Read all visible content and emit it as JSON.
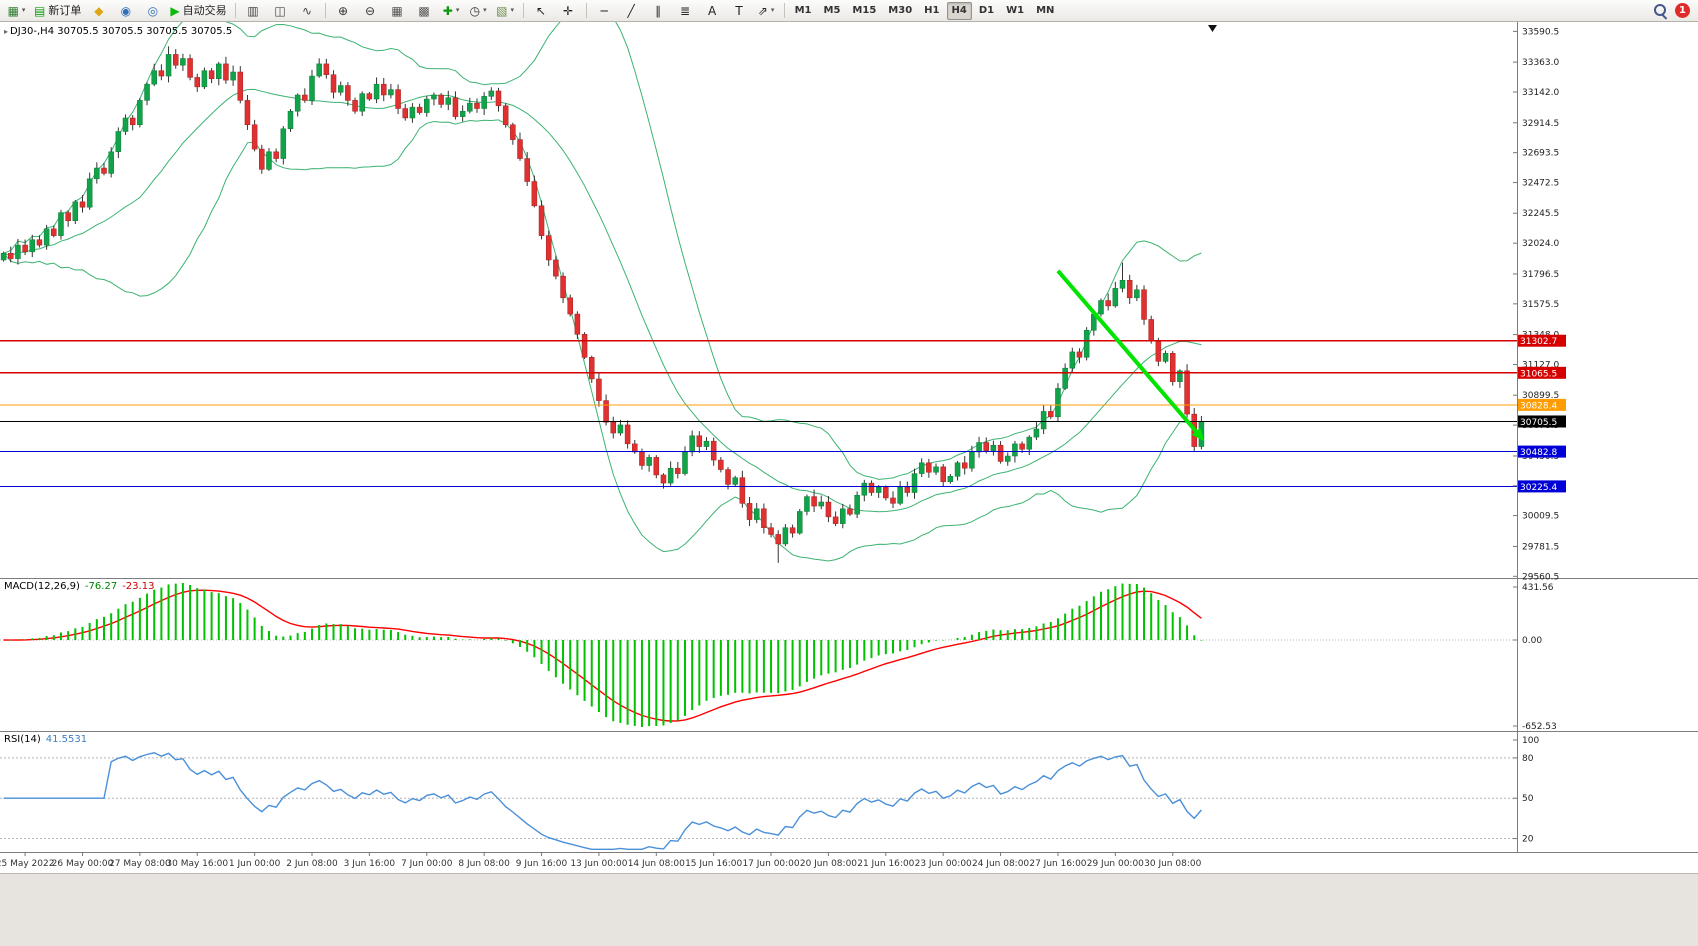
{
  "toolbar": {
    "caret_glyph": "▾",
    "items": [
      {
        "type": "icon",
        "name": "new-chart-icon",
        "glyph": "▦",
        "color": "#2e7d32",
        "caret": true
      },
      {
        "type": "labeled-button",
        "name": "new-order-button",
        "glyph": "▤",
        "glyph_color": "#12a012",
        "label": "新订单"
      },
      {
        "type": "icon",
        "name": "mql5-market-icon",
        "glyph": "◆",
        "color": "#dfa518"
      },
      {
        "type": "icon",
        "name": "signals-icon",
        "glyph": "◉",
        "color": "#2f6fb8"
      },
      {
        "type": "icon",
        "name": "virtual-hosting-icon",
        "glyph": "◎",
        "color": "#2f6fb8"
      },
      {
        "type": "labeled-button",
        "name": "algo-trading-button",
        "glyph": "▶",
        "glyph_color": "#0db80d",
        "label": "自动交易"
      },
      {
        "type": "sep"
      },
      {
        "type": "icon",
        "name": "bars-icon",
        "glyph": "▥",
        "color": "#444"
      },
      {
        "type": "icon",
        "name": "candlesticks-icon",
        "glyph": "◫",
        "color": "#444"
      },
      {
        "type": "icon",
        "name": "line-chart-icon",
        "glyph": "∿",
        "color": "#444"
      },
      {
        "type": "sep"
      },
      {
        "type": "icon",
        "name": "zoom-in-icon",
        "glyph": "⊕",
        "color": "#333"
      },
      {
        "type": "icon",
        "name": "zoom-out-icon",
        "glyph": "⊖",
        "color": "#333"
      },
      {
        "type": "icon",
        "name": "tile-windows-icon",
        "glyph": "▦",
        "color": "#555"
      },
      {
        "type": "icon",
        "name": "auto-arrange-icon",
        "glyph": "▩",
        "color": "#555"
      },
      {
        "type": "icon",
        "name": "indicators-icon",
        "glyph": "✚",
        "color": "#0a9a0a",
        "caret": true
      },
      {
        "type": "icon",
        "name": "periods-icon",
        "glyph": "◷",
        "color": "#333",
        "caret": true
      },
      {
        "type": "icon",
        "name": "templates-icon",
        "glyph": "▧",
        "color": "#6a8f4a",
        "caret": true
      },
      {
        "type": "sep"
      },
      {
        "type": "icon",
        "name": "cursor-icon",
        "glyph": "↖",
        "color": "#222"
      },
      {
        "type": "icon",
        "name": "crosshair-icon",
        "glyph": "✛",
        "color": "#222"
      },
      {
        "type": "sep"
      },
      {
        "type": "icon",
        "name": "horizontal-line-icon",
        "glyph": "─",
        "color": "#222"
      },
      {
        "type": "icon",
        "name": "trendline-icon",
        "glyph": "╱",
        "color": "#222"
      },
      {
        "type": "icon",
        "name": "channel-icon",
        "glyph": "∥",
        "color": "#222"
      },
      {
        "type": "icon",
        "name": "fibonacci-icon",
        "glyph": "≣",
        "color": "#222"
      },
      {
        "type": "icon",
        "name": "text-icon",
        "glyph": "A",
        "color": "#222"
      },
      {
        "type": "icon",
        "name": "label-icon",
        "glyph": "T",
        "color": "#222"
      },
      {
        "type": "icon",
        "name": "arrows-icon",
        "glyph": "⇗",
        "color": "#222",
        "caret": true
      },
      {
        "type": "sep"
      }
    ],
    "timeframes": {
      "items": [
        "M1",
        "M5",
        "M15",
        "M30",
        "H1",
        "H4",
        "D1",
        "W1",
        "MN"
      ],
      "active": "H4"
    },
    "right": {
      "search_name": "search-icon",
      "badge_name": "notifications-badge",
      "badge_label": "1"
    }
  },
  "chart_data": {
    "type": "candlestick",
    "symbol": "DJ30-",
    "period": "H4",
    "title_line": "DJ30-,H4 30705.5 30705.5 30705.5 30705.5",
    "ohlc_current": {
      "open": 30705.5,
      "high": 30705.5,
      "low": 30705.5,
      "close": 30705.5
    },
    "price_axis": {
      "visible_range": [
        29560.5,
        33590.5
      ],
      "ticks": [
        33590.5,
        33363.0,
        33142.0,
        32914.5,
        32693.5,
        32472.5,
        32245.5,
        32024.0,
        31796.5,
        31575.5,
        31348.0,
        31127.0,
        30899.5,
        30678.5,
        30450.5,
        30230.0,
        30009.5,
        29781.5,
        29560.5
      ]
    },
    "time_axis": {
      "labels": [
        "25 May 2022",
        "26 May 00:00",
        "27 May 08:00",
        "30 May 16:00",
        "1 Jun 00:00",
        "2 Jun 08:00",
        "3 Jun 16:00",
        "7 Jun 00:00",
        "8 Jun 08:00",
        "9 Jun 16:00",
        "13 Jun 00:00",
        "14 Jun 08:00",
        "15 Jun 16:00",
        "17 Jun 00:00",
        "20 Jun 08:00",
        "21 Jun 16:00",
        "23 Jun 00:00",
        "24 Jun 08:00",
        "27 Jun 16:00",
        "29 Jun 00:00",
        "30 Jun 08:00"
      ]
    },
    "candles": {
      "first_open": 31900,
      "closes": [
        31950,
        31910,
        32010,
        31960,
        32050,
        32010,
        32130,
        32080,
        32250,
        32190,
        32330,
        32290,
        32500,
        32580,
        32540,
        32700,
        32850,
        32950,
        32900,
        33080,
        33200,
        33300,
        33260,
        33420,
        33340,
        33390,
        33250,
        33180,
        33300,
        33240,
        33350,
        33230,
        33290,
        33080,
        32900,
        32720,
        32570,
        32700,
        32650,
        32870,
        33000,
        33120,
        33080,
        33260,
        33350,
        33270,
        33140,
        33190,
        33080,
        33000,
        33130,
        33090,
        33200,
        33120,
        33160,
        33020,
        32950,
        33030,
        32990,
        33090,
        33120,
        33050,
        33100,
        32960,
        33000,
        33060,
        33020,
        33110,
        33150,
        33040,
        32900,
        32790,
        32650,
        32480,
        32300,
        32080,
        31900,
        31780,
        31620,
        31500,
        31350,
        31180,
        31020,
        30860,
        30700,
        30620,
        30680,
        30540,
        30480,
        30380,
        30440,
        30310,
        30250,
        30360,
        30320,
        30480,
        30600,
        30520,
        30560,
        30420,
        30350,
        30240,
        30290,
        30100,
        29980,
        30060,
        29920,
        29870,
        29800,
        29920,
        29880,
        30040,
        30150,
        30080,
        30110,
        30000,
        29950,
        30060,
        30020,
        30160,
        30250,
        30180,
        30220,
        30140,
        30100,
        30220,
        30180,
        30320,
        30400,
        30330,
        30370,
        30260,
        30300,
        30400,
        30360,
        30480,
        30550,
        30490,
        30530,
        30410,
        30450,
        30540,
        30500,
        30590,
        30650,
        30780,
        30740,
        30950,
        31100,
        31220,
        31180,
        31380,
        31500,
        31600,
        31560,
        31690,
        31750,
        31620,
        31680,
        31460,
        31300,
        31150,
        31210,
        31000,
        31080,
        30760,
        30520,
        30705.5
      ],
      "wick_overrides": {
        "23": {
          "high": 33480
        },
        "108": {
          "low": 29660
        },
        "156": {
          "high": 31880
        }
      }
    },
    "indicators": {
      "bollinger": {
        "period": 20,
        "deviation": 2,
        "color": "#3CB371"
      },
      "macd": {
        "name": "MACD(12,26,9)",
        "fast": 12,
        "slow": 26,
        "signal": 9,
        "value_main": "-76.27",
        "value_signal": "-23.13",
        "axis_ticks": [
          "431.56",
          "0.00",
          "-652.53"
        ],
        "histogram_color": "#00c200",
        "signal_color": "#ff0000"
      },
      "rsi": {
        "name": "RSI(14)",
        "period": 14,
        "value": "41.5531",
        "levels": [
          80,
          50,
          20
        ],
        "axis_ticks": [
          "100",
          "80",
          "50",
          "20"
        ],
        "range": [
          10,
          100
        ],
        "color": "#4a90d9"
      }
    },
    "objects": {
      "hlines": [
        {
          "price": 31302.7,
          "color": "#d60000"
        },
        {
          "price": 31065.5,
          "color": "#d60000"
        },
        {
          "price": 30828.4,
          "color": "#ff9c00"
        },
        {
          "price": 30705.5,
          "color": "#000000",
          "role": "current-price"
        },
        {
          "price": 30482.8,
          "color": "#0000d6"
        },
        {
          "price": 30225.4,
          "color": "#0000d6"
        }
      ],
      "trend_arrow": {
        "from": {
          "bar": 147,
          "price": 31820
        },
        "to": {
          "bar": 167,
          "price": 30560
        },
        "color": "#00e400",
        "width": 4
      }
    },
    "colors": {
      "up": "#12a34a",
      "down": "#e03030",
      "wick": "#333333",
      "background": "#ffffff"
    }
  }
}
